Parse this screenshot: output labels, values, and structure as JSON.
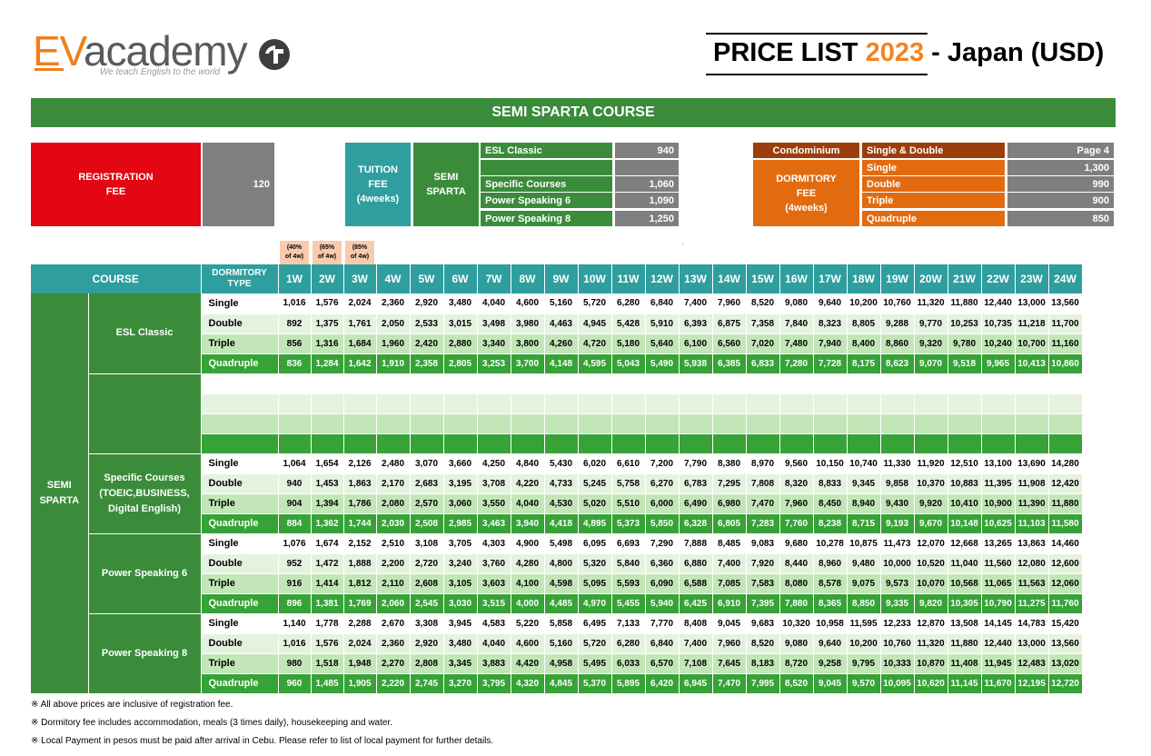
{
  "header": {
    "logo_ev": "EV",
    "logo_rest": "academy",
    "tagline": "We teach English to the world",
    "title_prefix": "PRICE LIST ",
    "title_year": "2023",
    "title_suffix": " - Japan (USD)"
  },
  "banner": "SEMI SPARTA COURSE",
  "summary": {
    "registration_label": "REGISTRATION\nFEE",
    "registration_value": "120",
    "tuition_label": "TUITION\nFEE\n(4weeks)",
    "semi_label": "SEMI\nSPARTA",
    "courses": [
      {
        "name": "ESL Classic",
        "value": "940"
      },
      {
        "name": "",
        "value": ""
      },
      {
        "name": "Specific Courses",
        "value": "1,060"
      },
      {
        "name": "Power Speaking 6",
        "value": "1,090"
      },
      {
        "name": "Power Speaking 8",
        "value": "1,250"
      }
    ],
    "condo_label": "Condominium",
    "dorm_label": "DORMITORY\nFEE\n(4weeks)",
    "dorm_rows": [
      {
        "name": "Single & Double",
        "value": "Page 4"
      },
      {
        "name": "Single",
        "value": "1,300"
      },
      {
        "name": "Double",
        "value": "990"
      },
      {
        "name": "Triple",
        "value": "900"
      },
      {
        "name": "Quadruple",
        "value": "850"
      }
    ]
  },
  "pct_labels": [
    "(40%\nof 4w)",
    "(65%\nof 4w)",
    "(85%\nof 4w)"
  ],
  "stray_mark": "`",
  "table": {
    "col_course": "COURSE",
    "col_dorm": "DORMITORY TYPE",
    "weeks": [
      "1W",
      "2W",
      "3W",
      "4W",
      "5W",
      "6W",
      "7W",
      "8W",
      "9W",
      "10W",
      "11W",
      "12W",
      "13W",
      "14W",
      "15W",
      "16W",
      "17W",
      "18W",
      "19W",
      "20W",
      "21W",
      "22W",
      "23W",
      "24W"
    ],
    "category": "SEMI\nSPARTA",
    "groups": [
      {
        "name": "ESL Classic",
        "rows": [
          {
            "type": "Single",
            "prices": [
              "1,016",
              "1,576",
              "2,024",
              "2,360",
              "2,920",
              "3,480",
              "4,040",
              "4,600",
              "5,160",
              "5,720",
              "6,280",
              "6,840",
              "7,400",
              "7,960",
              "8,520",
              "9,080",
              "9,640",
              "10,200",
              "10,760",
              "11,320",
              "11,880",
              "12,440",
              "13,000",
              "13,560"
            ]
          },
          {
            "type": "Double",
            "prices": [
              "892",
              "1,375",
              "1,761",
              "2,050",
              "2,533",
              "3,015",
              "3,498",
              "3,980",
              "4,463",
              "4,945",
              "5,428",
              "5,910",
              "6,393",
              "6,875",
              "7,358",
              "7,840",
              "8,323",
              "8,805",
              "9,288",
              "9,770",
              "10,253",
              "10,735",
              "11,218",
              "11,700"
            ]
          },
          {
            "type": "Triple",
            "prices": [
              "856",
              "1,316",
              "1,684",
              "1,960",
              "2,420",
              "2,880",
              "3,340",
              "3,800",
              "4,260",
              "4,720",
              "5,180",
              "5,640",
              "6,100",
              "6,560",
              "7,020",
              "7,480",
              "7,940",
              "8,400",
              "8,860",
              "9,320",
              "9,780",
              "10,240",
              "10,700",
              "11,160"
            ]
          },
          {
            "type": "Quadruple",
            "prices": [
              "836",
              "1,284",
              "1,642",
              "1,910",
              "2,358",
              "2,805",
              "3,253",
              "3,700",
              "4,148",
              "4,595",
              "5,043",
              "5,490",
              "5,938",
              "6,385",
              "6,833",
              "7,280",
              "7,728",
              "8,175",
              "8,623",
              "9,070",
              "9,518",
              "9,965",
              "10,413",
              "10,860"
            ]
          }
        ]
      },
      {
        "name": "",
        "rows": [
          {
            "type": "",
            "prices": []
          },
          {
            "type": "",
            "prices": []
          },
          {
            "type": "",
            "prices": []
          },
          {
            "type": "",
            "prices": []
          }
        ]
      },
      {
        "name": "Specific Courses\n(TOEIC,BUSINESS,\nDigital English)",
        "rows": [
          {
            "type": "Single",
            "prices": [
              "1,064",
              "1,654",
              "2,126",
              "2,480",
              "3,070",
              "3,660",
              "4,250",
              "4,840",
              "5,430",
              "6,020",
              "6,610",
              "7,200",
              "7,790",
              "8,380",
              "8,970",
              "9,560",
              "10,150",
              "10,740",
              "11,330",
              "11,920",
              "12,510",
              "13,100",
              "13,690",
              "14,280"
            ]
          },
          {
            "type": "Double",
            "prices": [
              "940",
              "1,453",
              "1,863",
              "2,170",
              "2,683",
              "3,195",
              "3,708",
              "4,220",
              "4,733",
              "5,245",
              "5,758",
              "6,270",
              "6,783",
              "7,295",
              "7,808",
              "8,320",
              "8,833",
              "9,345",
              "9,858",
              "10,370",
              "10,883",
              "11,395",
              "11,908",
              "12,420"
            ]
          },
          {
            "type": "Triple",
            "prices": [
              "904",
              "1,394",
              "1,786",
              "2,080",
              "2,570",
              "3,060",
              "3,550",
              "4,040",
              "4,530",
              "5,020",
              "5,510",
              "6,000",
              "6,490",
              "6,980",
              "7,470",
              "7,960",
              "8,450",
              "8,940",
              "9,430",
              "9,920",
              "10,410",
              "10,900",
              "11,390",
              "11,880"
            ]
          },
          {
            "type": "Quadruple",
            "prices": [
              "884",
              "1,362",
              "1,744",
              "2,030",
              "2,508",
              "2,985",
              "3,463",
              "3,940",
              "4,418",
              "4,895",
              "5,373",
              "5,850",
              "6,328",
              "6,805",
              "7,283",
              "7,760",
              "8,238",
              "8,715",
              "9,193",
              "9,670",
              "10,148",
              "10,625",
              "11,103",
              "11,580"
            ]
          }
        ]
      },
      {
        "name": "Power Speaking 6",
        "rows": [
          {
            "type": "Single",
            "prices": [
              "1,076",
              "1,674",
              "2,152",
              "2,510",
              "3,108",
              "3,705",
              "4,303",
              "4,900",
              "5,498",
              "6,095",
              "6,693",
              "7,290",
              "7,888",
              "8,485",
              "9,083",
              "9,680",
              "10,278",
              "10,875",
              "11,473",
              "12,070",
              "12,668",
              "13,265",
              "13,863",
              "14,460"
            ]
          },
          {
            "type": "Double",
            "prices": [
              "952",
              "1,472",
              "1,888",
              "2,200",
              "2,720",
              "3,240",
              "3,760",
              "4,280",
              "4,800",
              "5,320",
              "5,840",
              "6,360",
              "6,880",
              "7,400",
              "7,920",
              "8,440",
              "8,960",
              "9,480",
              "10,000",
              "10,520",
              "11,040",
              "11,560",
              "12,080",
              "12,600"
            ]
          },
          {
            "type": "Triple",
            "prices": [
              "916",
              "1,414",
              "1,812",
              "2,110",
              "2,608",
              "3,105",
              "3,603",
              "4,100",
              "4,598",
              "5,095",
              "5,593",
              "6,090",
              "6,588",
              "7,085",
              "7,583",
              "8,080",
              "8,578",
              "9,075",
              "9,573",
              "10,070",
              "10,568",
              "11,065",
              "11,563",
              "12,060"
            ]
          },
          {
            "type": "Quadruple",
            "prices": [
              "896",
              "1,381",
              "1,769",
              "2,060",
              "2,545",
              "3,030",
              "3,515",
              "4,000",
              "4,485",
              "4,970",
              "5,455",
              "5,940",
              "6,425",
              "6,910",
              "7,395",
              "7,880",
              "8,365",
              "8,850",
              "9,335",
              "9,820",
              "10,305",
              "10,790",
              "11,275",
              "11,760"
            ]
          }
        ]
      },
      {
        "name": "Power Speaking 8",
        "rows": [
          {
            "type": "Single",
            "prices": [
              "1,140",
              "1,778",
              "2,288",
              "2,670",
              "3,308",
              "3,945",
              "4,583",
              "5,220",
              "5,858",
              "6,495",
              "7,133",
              "7,770",
              "8,408",
              "9,045",
              "9,683",
              "10,320",
              "10,958",
              "11,595",
              "12,233",
              "12,870",
              "13,508",
              "14,145",
              "14,783",
              "15,420"
            ]
          },
          {
            "type": "Double",
            "prices": [
              "1,016",
              "1,576",
              "2,024",
              "2,360",
              "2,920",
              "3,480",
              "4,040",
              "4,600",
              "5,160",
              "5,720",
              "6,280",
              "6,840",
              "7,400",
              "7,960",
              "8,520",
              "9,080",
              "9,640",
              "10,200",
              "10,760",
              "11,320",
              "11,880",
              "12,440",
              "13,000",
              "13,560"
            ]
          },
          {
            "type": "Triple",
            "prices": [
              "980",
              "1,518",
              "1,948",
              "2,270",
              "2,808",
              "3,345",
              "3,883",
              "4,420",
              "4,958",
              "5,495",
              "6,033",
              "6,570",
              "7,108",
              "7,645",
              "8,183",
              "8,720",
              "9,258",
              "9,795",
              "10,333",
              "10,870",
              "11,408",
              "11,945",
              "12,483",
              "13,020"
            ]
          },
          {
            "type": "Quadruple",
            "prices": [
              "960",
              "1,485",
              "1,905",
              "2,220",
              "2,745",
              "3,270",
              "3,795",
              "4,320",
              "4,845",
              "5,370",
              "5,895",
              "6,420",
              "6,945",
              "7,470",
              "7,995",
              "8,520",
              "9,045",
              "9,570",
              "10,095",
              "10,620",
              "11,145",
              "11,670",
              "12,195",
              "12,720"
            ]
          }
        ]
      }
    ]
  },
  "notes": [
    "※ All above prices are inclusive of registration fee.",
    "※ Dormitory fee includes accommodation, meals (3 times daily), housekeeping and water.",
    "※ Local Payment in pesos must be paid after arrival in Cebu. Please refer to list of local payment for further details."
  ]
}
